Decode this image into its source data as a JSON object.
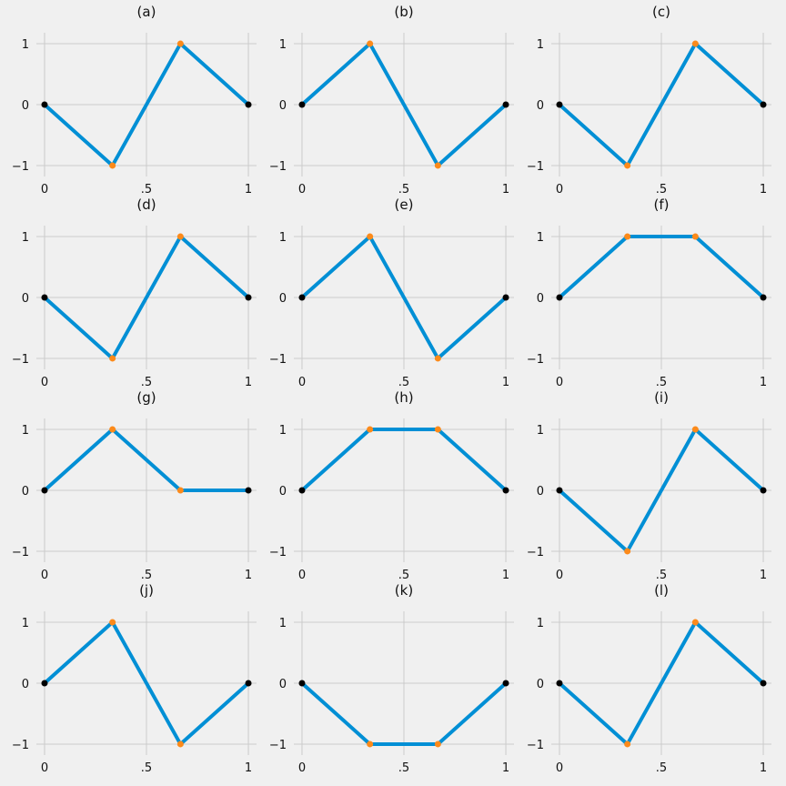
{
  "colors": {
    "background": "#f0f0f0",
    "grid": "#cbcbcb",
    "line": "#008fd5",
    "endpoint": "#000000",
    "midpoint": "#fc8a1a"
  },
  "chart_data": [
    {
      "type": "line",
      "title": "(a)",
      "x": [
        0,
        0.3333,
        0.6667,
        1
      ],
      "y": [
        0,
        -1,
        1,
        0
      ],
      "xlim": [
        -0.04,
        1.04
      ],
      "ylim": [
        -1.18,
        1.18
      ],
      "xticks": [
        0,
        0.5,
        1
      ],
      "xtick_labels": [
        "0",
        ".5",
        "1"
      ],
      "yticks": [
        -1,
        0,
        1
      ],
      "ytick_labels": [
        "−1",
        "0",
        "1"
      ],
      "grid": true
    },
    {
      "type": "line",
      "title": "(b)",
      "x": [
        0,
        0.3333,
        0.6667,
        1
      ],
      "y": [
        0,
        1,
        -1,
        0
      ],
      "xlim": [
        -0.04,
        1.04
      ],
      "ylim": [
        -1.18,
        1.18
      ],
      "xticks": [
        0,
        0.5,
        1
      ],
      "xtick_labels": [
        "0",
        ".5",
        "1"
      ],
      "yticks": [
        -1,
        0,
        1
      ],
      "ytick_labels": [
        "−1",
        "0",
        "1"
      ],
      "grid": true
    },
    {
      "type": "line",
      "title": "(c)",
      "x": [
        0,
        0.3333,
        0.6667,
        1
      ],
      "y": [
        0,
        -1,
        1,
        0
      ],
      "xlim": [
        -0.04,
        1.04
      ],
      "ylim": [
        -1.18,
        1.18
      ],
      "xticks": [
        0,
        0.5,
        1
      ],
      "xtick_labels": [
        "0",
        ".5",
        "1"
      ],
      "yticks": [
        -1,
        0,
        1
      ],
      "ytick_labels": [
        "−1",
        "0",
        "1"
      ],
      "grid": true
    },
    {
      "type": "line",
      "title": "(d)",
      "x": [
        0,
        0.3333,
        0.6667,
        1
      ],
      "y": [
        0,
        -1,
        1,
        0
      ],
      "xlim": [
        -0.04,
        1.04
      ],
      "ylim": [
        -1.18,
        1.18
      ],
      "xticks": [
        0,
        0.5,
        1
      ],
      "xtick_labels": [
        "0",
        ".5",
        "1"
      ],
      "yticks": [
        -1,
        0,
        1
      ],
      "ytick_labels": [
        "−1",
        "0",
        "1"
      ],
      "grid": true
    },
    {
      "type": "line",
      "title": "(e)",
      "x": [
        0,
        0.3333,
        0.6667,
        1
      ],
      "y": [
        0,
        1,
        -1,
        0
      ],
      "xlim": [
        -0.04,
        1.04
      ],
      "ylim": [
        -1.18,
        1.18
      ],
      "xticks": [
        0,
        0.5,
        1
      ],
      "xtick_labels": [
        "0",
        ".5",
        "1"
      ],
      "yticks": [
        -1,
        0,
        1
      ],
      "ytick_labels": [
        "−1",
        "0",
        "1"
      ],
      "grid": true
    },
    {
      "type": "line",
      "title": "(f)",
      "x": [
        0,
        0.3333,
        0.6667,
        1
      ],
      "y": [
        0,
        1,
        1,
        0
      ],
      "xlim": [
        -0.04,
        1.04
      ],
      "ylim": [
        -1.18,
        1.18
      ],
      "xticks": [
        0,
        0.5,
        1
      ],
      "xtick_labels": [
        "0",
        ".5",
        "1"
      ],
      "yticks": [
        -1,
        0,
        1
      ],
      "ytick_labels": [
        "−1",
        "0",
        "1"
      ],
      "grid": true
    },
    {
      "type": "line",
      "title": "(g)",
      "x": [
        0,
        0.3333,
        0.6667,
        1
      ],
      "y": [
        0,
        1,
        0,
        0
      ],
      "xlim": [
        -0.04,
        1.04
      ],
      "ylim": [
        -1.18,
        1.18
      ],
      "xticks": [
        0,
        0.5,
        1
      ],
      "xtick_labels": [
        "0",
        ".5",
        "1"
      ],
      "yticks": [
        -1,
        0,
        1
      ],
      "ytick_labels": [
        "−1",
        "0",
        "1"
      ],
      "grid": true
    },
    {
      "type": "line",
      "title": "(h)",
      "x": [
        0,
        0.3333,
        0.6667,
        1
      ],
      "y": [
        0,
        1,
        1,
        0
      ],
      "xlim": [
        -0.04,
        1.04
      ],
      "ylim": [
        -1.18,
        1.18
      ],
      "xticks": [
        0,
        0.5,
        1
      ],
      "xtick_labels": [
        "0",
        ".5",
        "1"
      ],
      "yticks": [
        -1,
        0,
        1
      ],
      "ytick_labels": [
        "−1",
        "0",
        "1"
      ],
      "grid": true
    },
    {
      "type": "line",
      "title": "(i)",
      "x": [
        0,
        0.3333,
        0.6667,
        1
      ],
      "y": [
        0,
        -1,
        1,
        0
      ],
      "xlim": [
        -0.04,
        1.04
      ],
      "ylim": [
        -1.18,
        1.18
      ],
      "xticks": [
        0,
        0.5,
        1
      ],
      "xtick_labels": [
        "0",
        ".5",
        "1"
      ],
      "yticks": [
        -1,
        0,
        1
      ],
      "ytick_labels": [
        "−1",
        "0",
        "1"
      ],
      "grid": true
    },
    {
      "type": "line",
      "title": "(j)",
      "x": [
        0,
        0.3333,
        0.6667,
        1
      ],
      "y": [
        0,
        1,
        -1,
        0
      ],
      "xlim": [
        -0.04,
        1.04
      ],
      "ylim": [
        -1.18,
        1.18
      ],
      "xticks": [
        0,
        0.5,
        1
      ],
      "xtick_labels": [
        "0",
        ".5",
        "1"
      ],
      "yticks": [
        -1,
        0,
        1
      ],
      "ytick_labels": [
        "−1",
        "0",
        "1"
      ],
      "grid": true
    },
    {
      "type": "line",
      "title": "(k)",
      "x": [
        0,
        0.3333,
        0.6667,
        1
      ],
      "y": [
        0,
        -1,
        -1,
        0
      ],
      "xlim": [
        -0.04,
        1.04
      ],
      "ylim": [
        -1.18,
        1.18
      ],
      "xticks": [
        0,
        0.5,
        1
      ],
      "xtick_labels": [
        "0",
        ".5",
        "1"
      ],
      "yticks": [
        -1,
        0,
        1
      ],
      "ytick_labels": [
        "−1",
        "0",
        "1"
      ],
      "grid": true
    },
    {
      "type": "line",
      "title": "(l)",
      "x": [
        0,
        0.3333,
        0.6667,
        1
      ],
      "y": [
        0,
        -1,
        1,
        0
      ],
      "xlim": [
        -0.04,
        1.04
      ],
      "ylim": [
        -1.18,
        1.18
      ],
      "xticks": [
        0,
        0.5,
        1
      ],
      "xtick_labels": [
        "0",
        ".5",
        "1"
      ],
      "yticks": [
        -1,
        0,
        1
      ],
      "ytick_labels": [
        "−1",
        "0",
        "1"
      ],
      "grid": true
    }
  ]
}
